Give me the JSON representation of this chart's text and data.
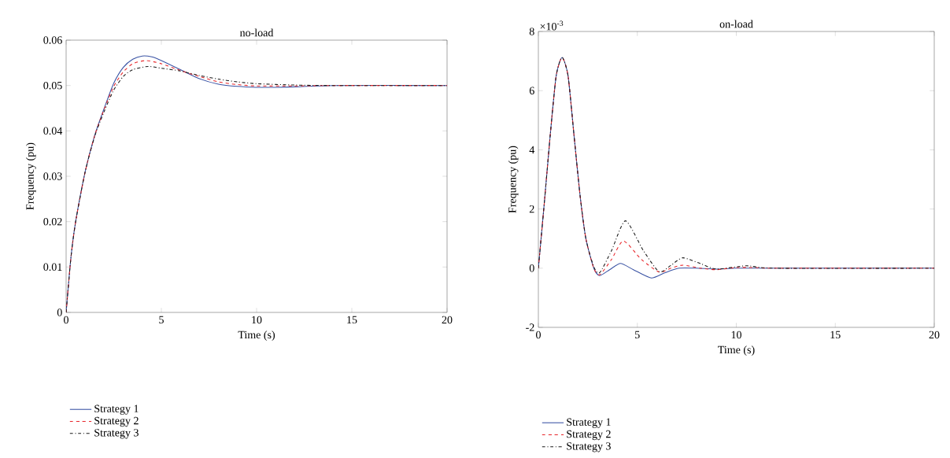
{
  "chart_data": [
    {
      "type": "line",
      "title": "no-load",
      "xlabel": "Time (s)",
      "ylabel": "Frequency (pu)",
      "xlim": [
        0,
        20
      ],
      "ylim": [
        0,
        0.06
      ],
      "xticks": [
        0,
        5,
        10,
        15,
        20
      ],
      "yticks": [
        0,
        0.01,
        0.02,
        0.03,
        0.04,
        0.05,
        0.06
      ],
      "legend": "bottom",
      "grid": false,
      "series": [
        {
          "name": "Strategy 1",
          "color": "#3a53a4",
          "line_style": "solid",
          "x": [
            0,
            0.25,
            0.5,
            1,
            1.5,
            2,
            2.5,
            3,
            3.5,
            4,
            4.5,
            5,
            6,
            7,
            8,
            9,
            10,
            11,
            12,
            14,
            20
          ],
          "values": [
            0,
            0.012,
            0.02,
            0.031,
            0.039,
            0.045,
            0.0505,
            0.054,
            0.0558,
            0.0565,
            0.0563,
            0.0555,
            0.0535,
            0.0515,
            0.0503,
            0.0498,
            0.0496,
            0.0496,
            0.0497,
            0.05,
            0.05
          ]
        },
        {
          "name": "Strategy 2",
          "color": "#e8262a",
          "line_style": "dashed",
          "x": [
            0,
            0.25,
            0.5,
            1,
            1.5,
            2,
            2.5,
            3,
            3.5,
            4.2,
            5,
            6,
            7,
            8,
            9,
            10,
            12,
            14,
            20
          ],
          "values": [
            0,
            0.012,
            0.02,
            0.031,
            0.039,
            0.0448,
            0.0498,
            0.053,
            0.0548,
            0.0555,
            0.0548,
            0.0533,
            0.052,
            0.0508,
            0.0502,
            0.0499,
            0.0499,
            0.05,
            0.05
          ]
        },
        {
          "name": "Strategy 3",
          "color": "#1a1a1a",
          "line_style": "dashdot",
          "x": [
            0,
            0.25,
            0.5,
            1,
            1.5,
            2,
            2.5,
            3,
            3.5,
            4.3,
            5,
            6,
            7,
            8,
            9,
            10,
            12,
            14,
            20
          ],
          "values": [
            0,
            0.012,
            0.02,
            0.031,
            0.0388,
            0.0443,
            0.049,
            0.052,
            0.0535,
            0.0542,
            0.0538,
            0.0532,
            0.0522,
            0.0514,
            0.0508,
            0.0504,
            0.0501,
            0.05,
            0.05
          ]
        }
      ]
    },
    {
      "type": "line",
      "title": "on-load",
      "xlabel": "Time (s)",
      "ylabel": "Frequency (pu)",
      "annotations": [
        "×10$^{-3}$"
      ],
      "xlim": [
        0,
        20
      ],
      "ylim": [
        -2,
        8
      ],
      "xticks": [
        0,
        5,
        10,
        15,
        20
      ],
      "yticks": [
        -2,
        0,
        2,
        4,
        6,
        8
      ],
      "legend": "bottom",
      "grid": false,
      "series": [
        {
          "name": "Strategy 1",
          "color": "#3a53a4",
          "line_style": "solid",
          "x": [
            0,
            0.3,
            0.6,
            0.9,
            1.2,
            1.5,
            1.8,
            2.1,
            2.4,
            2.8,
            3.1,
            3.6,
            4.15,
            4.8,
            5.7,
            6.4,
            7.1,
            8,
            9,
            10,
            12,
            20
          ],
          "values": [
            0,
            2.2,
            4.5,
            6.5,
            7.12,
            6.5,
            4.5,
            2.5,
            1.0,
            0,
            -0.25,
            -0.05,
            0.16,
            -0.05,
            -0.33,
            -0.15,
            0,
            0.0,
            -0.03,
            0,
            0,
            0
          ]
        },
        {
          "name": "Strategy 2",
          "color": "#e8262a",
          "line_style": "dashed",
          "x": [
            0,
            0.3,
            0.6,
            0.9,
            1.2,
            1.5,
            1.8,
            2.1,
            2.4,
            2.8,
            3.1,
            3.7,
            4.3,
            5.2,
            6.1,
            6.7,
            7.3,
            8.2,
            9,
            10,
            11,
            12,
            20
          ],
          "values": [
            0,
            2.2,
            4.5,
            6.5,
            7.12,
            6.5,
            4.5,
            2.5,
            1.0,
            0,
            -0.22,
            0.3,
            0.92,
            0.3,
            -0.13,
            0.0,
            0.1,
            0.0,
            -0.05,
            0.02,
            0.02,
            0,
            0
          ]
        },
        {
          "name": "Strategy 3",
          "color": "#1a1a1a",
          "line_style": "dashdot",
          "x": [
            0,
            0.3,
            0.6,
            0.9,
            1.2,
            1.5,
            1.8,
            2.1,
            2.4,
            2.8,
            3.1,
            3.7,
            4.4,
            5.3,
            6.1,
            6.7,
            7.3,
            8.2,
            9,
            10.5,
            12,
            20
          ],
          "values": [
            0,
            2.2,
            4.5,
            6.5,
            7.12,
            6.5,
            4.5,
            2.5,
            1.0,
            0.05,
            -0.15,
            0.6,
            1.6,
            0.6,
            -0.12,
            0.1,
            0.35,
            0.15,
            -0.03,
            0.08,
            0,
            0
          ]
        }
      ]
    }
  ]
}
